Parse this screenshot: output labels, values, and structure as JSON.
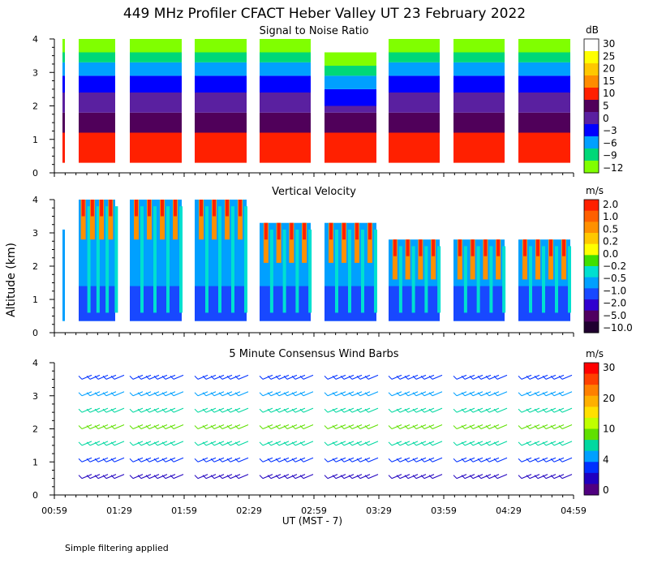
{
  "title": "449 MHz Profiler CFACT Heber Valley UT 23 February 2022",
  "y_axis_label": "Altitude (km)",
  "x_axis_label": "UT  (MST - 7)",
  "footnote": "Simple filtering applied",
  "chart_data": [
    {
      "type": "heatmap",
      "title": "Signal to Noise Ratio",
      "ylabel": "Altitude (km)",
      "xlabel": "UT  (MST - 7)",
      "ylim": [
        0,
        4
      ],
      "xlim": [
        "00:59",
        "04:59"
      ],
      "x_ticks": [
        "00:59",
        "01:29",
        "01:59",
        "02:29",
        "02:59",
        "03:29",
        "03:59",
        "04:29",
        "04:59"
      ],
      "y_ticks": [
        "0",
        "1",
        "2",
        "3",
        "4"
      ],
      "colorbar_unit": "dB",
      "colorbar_labels": [
        "30",
        "25",
        "20",
        "15",
        "10",
        "5",
        "0",
        "−3",
        "−6",
        "−9",
        "−12"
      ],
      "colorbar_colors": [
        "#ffffff",
        "#ffff00",
        "#ffc800",
        "#ff8c00",
        "#ff2000",
        "#50005a",
        "#5a20a0",
        "#0000ff",
        "#00a0ff",
        "#00d878",
        "#80ff00"
      ],
      "layers_bottom_to_top": [
        {
          "altitude_km": [
            0.3,
            1.2
          ],
          "value_db": 10
        },
        {
          "altitude_km": [
            1.2,
            1.8
          ],
          "value_db": 5
        },
        {
          "altitude_km": [
            1.8,
            2.4
          ],
          "value_db": 0
        },
        {
          "altitude_km": [
            2.4,
            2.9
          ],
          "value_db": -3
        },
        {
          "altitude_km": [
            2.9,
            3.3
          ],
          "value_db": -6
        },
        {
          "altitude_km": [
            3.3,
            3.6
          ],
          "value_db": -9
        },
        {
          "altitude_km": [
            3.6,
            4.0
          ],
          "value_db": -12
        }
      ]
    },
    {
      "type": "heatmap",
      "title": "Vertical Velocity",
      "ylim": [
        0,
        4
      ],
      "colorbar_unit": "m/s",
      "colorbar_labels": [
        "2.0",
        "1.0",
        "0.5",
        "0.2",
        "0.0",
        "−0.2",
        "−0.5",
        "−1.0",
        "−2.0",
        "−5.0",
        "−10.0"
      ],
      "colorbar_colors": [
        "#ff2000",
        "#ff6000",
        "#ff9000",
        "#ffc800",
        "#ffff00",
        "#40e000",
        "#00e0d0",
        "#00a0ff",
        "#1848ff",
        "#3000d0",
        "#500060",
        "#200030"
      ],
      "typical_value_m_s": -1.0
    },
    {
      "type": "scatter",
      "title": "5 Minute Consensus Wind Barbs",
      "ylim": [
        0,
        4
      ],
      "colorbar_unit": "m/s",
      "colorbar_labels": [
        "30",
        "20",
        "10",
        "4",
        "0"
      ],
      "colorbar_colors": [
        "#ff0000",
        "#ff4000",
        "#ff8000",
        "#ffb000",
        "#ffe000",
        "#c0ff00",
        "#60e000",
        "#00d8a0",
        "#00a0ff",
        "#0030ff",
        "#2000c0",
        "#500080"
      ],
      "speed_by_altitude": [
        {
          "altitude_km": 0.5,
          "speed_m_s": 2
        },
        {
          "altitude_km": 1.0,
          "speed_m_s": 4
        },
        {
          "altitude_km": 1.5,
          "speed_m_s": 10
        },
        {
          "altitude_km": 2.0,
          "speed_m_s": 12
        },
        {
          "altitude_km": 2.5,
          "speed_m_s": 10
        },
        {
          "altitude_km": 3.0,
          "speed_m_s": 6
        },
        {
          "altitude_km": 3.5,
          "speed_m_s": 4
        }
      ]
    }
  ]
}
